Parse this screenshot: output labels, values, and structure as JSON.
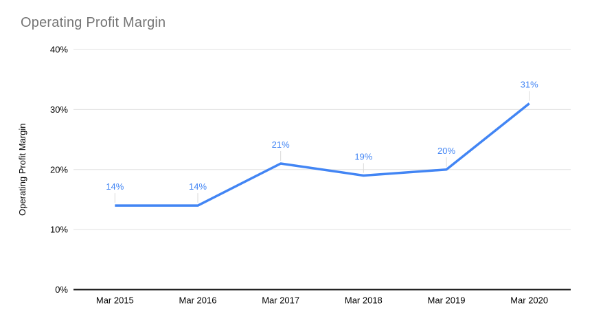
{
  "chart_data": {
    "type": "line",
    "title": "Operating Profit Margin",
    "ylabel": "Operating Profit Margin",
    "categories": [
      "Mar 2015",
      "Mar 2016",
      "Mar 2017",
      "Mar 2018",
      "Mar 2019",
      "Mar 2020"
    ],
    "series": [
      {
        "name": "Operating Profit Margin",
        "values": [
          14,
          14,
          21,
          19,
          20,
          31
        ]
      }
    ],
    "data_labels": [
      "14%",
      "14%",
      "21%",
      "19%",
      "20%",
      "31%"
    ],
    "y_ticks": [
      {
        "label": "0%",
        "value": 0
      },
      {
        "label": "10%",
        "value": 10
      },
      {
        "label": "20%",
        "value": 20
      },
      {
        "label": "30%",
        "value": 30
      },
      {
        "label": "40%",
        "value": 40
      }
    ],
    "ylim": [
      0,
      40
    ],
    "grid": true,
    "legend": "none",
    "colors": {
      "series": "#4285f4",
      "title": "#757575",
      "axis_text": "#000000",
      "gridline": "#e0e0e0",
      "leader_line": "#d9d9d9",
      "axis_line": "#111111",
      "background": "#ffffff"
    }
  }
}
